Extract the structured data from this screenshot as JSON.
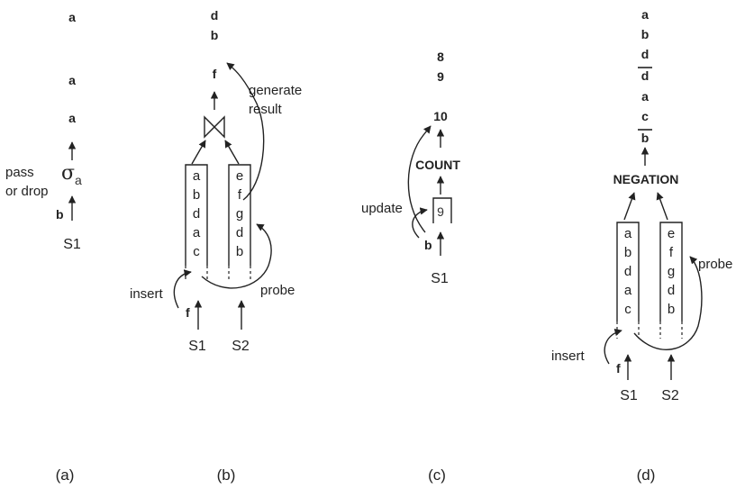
{
  "panel_a": {
    "outputs": [
      "a",
      "a",
      "a"
    ],
    "operator_symbol": "σ",
    "operator_sub": "a",
    "note_line1": "pass",
    "note_line2": "or drop",
    "input_tuple": "b",
    "stream": "S1",
    "caption": "(a)"
  },
  "panel_b": {
    "outputs": [
      "d",
      "b",
      "f"
    ],
    "generate_line1": "generate",
    "generate_line2": "result",
    "queue_left": [
      "a",
      "b",
      "d",
      "a",
      "c"
    ],
    "queue_right": [
      "e",
      "f",
      "g",
      "d",
      "b"
    ],
    "insert_label": "insert",
    "probe_label": "probe",
    "input_tuple": "f",
    "stream_left": "S1",
    "stream_right": "S2",
    "caption": "(b)"
  },
  "panel_c": {
    "outputs": [
      "8",
      "9",
      "10"
    ],
    "operator": "COUNT",
    "state_value": "9",
    "update_label": "update",
    "input_tuple": "b",
    "stream": "S1",
    "caption": "(c)"
  },
  "panel_d": {
    "outputs": [
      "a",
      "b",
      "d",
      "d",
      "a",
      "c",
      "b"
    ],
    "operator": "NEGATION",
    "queue_left": [
      "a",
      "b",
      "d",
      "a",
      "c"
    ],
    "queue_right": [
      "e",
      "f",
      "g",
      "d",
      "b"
    ],
    "insert_label": "insert",
    "probe_label": "probe",
    "input_tuple": "f",
    "stream_left": "S1",
    "stream_right": "S2",
    "caption": "(d)"
  }
}
